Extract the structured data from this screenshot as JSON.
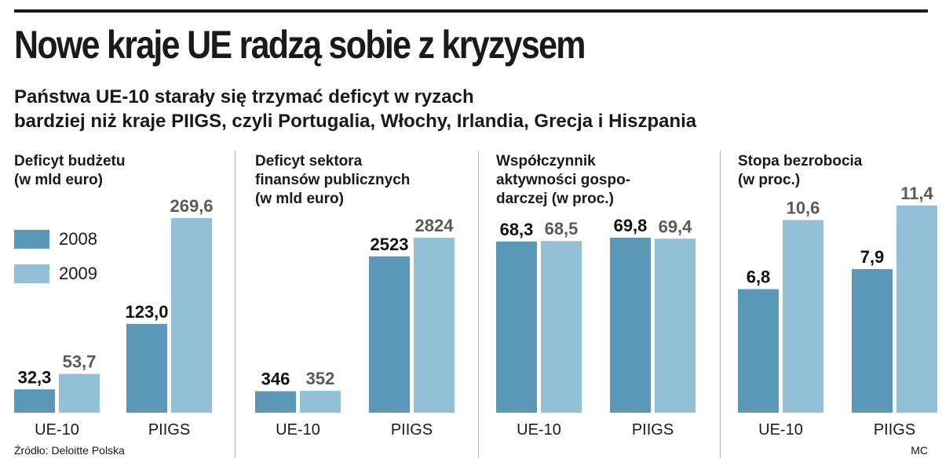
{
  "title": "Nowe kraje UE radzą sobie z kryzysem",
  "subtitle": [
    "Państwa UE-10 starały się trzymać deficyt w ryzach",
    "bardziej niż kraje PIIGS, czyli Portugalia, Włochy, Irlandia, Grecja i Hiszpania"
  ],
  "source": "Źródło: Deloitte Polska",
  "credit": "MC",
  "colors": {
    "2008": "#5b97b6",
    "2009": "#93c0d7",
    "label_2008": "#111111",
    "label_2009": "#5a5a5a"
  },
  "legend": [
    "2008",
    "2009"
  ],
  "chart_data": [
    {
      "type": "bar",
      "title": "Deficyt budżetu\n(w mld euro)",
      "categories": [
        "UE-10",
        "PIIGS"
      ],
      "series": [
        {
          "name": "2008",
          "values": [
            32.3,
            123.0
          ],
          "labels": [
            "32,3",
            "123,0"
          ]
        },
        {
          "name": "2009",
          "values": [
            53.7,
            269.6
          ],
          "labels": [
            "53,7",
            "269,6"
          ]
        }
      ]
    },
    {
      "type": "bar",
      "title": "Deficyt sektora\nfinansów publicznych\n(w mld euro)",
      "categories": [
        "UE-10",
        "PIIGS"
      ],
      "series": [
        {
          "name": "2008",
          "values": [
            346,
            2523
          ],
          "labels": [
            "346",
            "2523"
          ]
        },
        {
          "name": "2009",
          "values": [
            352,
            2824
          ],
          "labels": [
            "352",
            "2824"
          ]
        }
      ]
    },
    {
      "type": "bar",
      "title": "Współczynnik\naktywności gospo-\ndarczej (w proc.)",
      "categories": [
        "UE-10",
        "PIIGS"
      ],
      "series": [
        {
          "name": "2008",
          "values": [
            68.3,
            69.8
          ],
          "labels": [
            "68,3",
            "69,8"
          ]
        },
        {
          "name": "2009",
          "values": [
            68.5,
            69.4
          ],
          "labels": [
            "68,5",
            "69,4"
          ]
        }
      ]
    },
    {
      "type": "bar",
      "title": "Stopa bezrobocia\n(w proc.)",
      "categories": [
        "UE-10",
        "PIIGS"
      ],
      "series": [
        {
          "name": "2008",
          "values": [
            6.8,
            7.9
          ],
          "labels": [
            "6,8",
            "7,9"
          ]
        },
        {
          "name": "2009",
          "values": [
            10.6,
            11.4
          ],
          "labels": [
            "10,6",
            "11,4"
          ]
        }
      ]
    }
  ]
}
